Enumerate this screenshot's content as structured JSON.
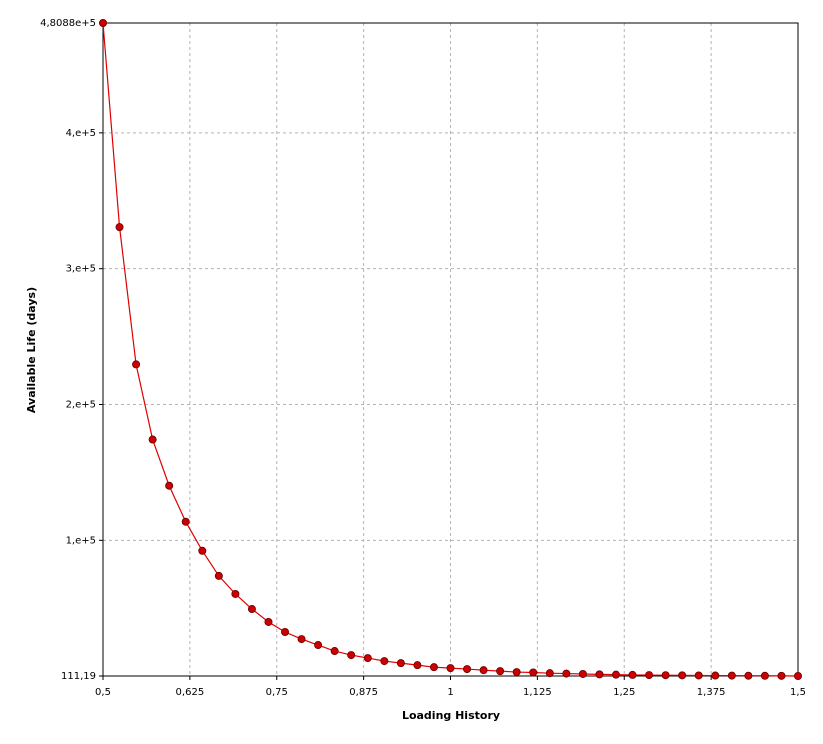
{
  "chart_data": {
    "type": "line",
    "x_label": "Loading History",
    "y_label": "Available Life (days)",
    "x": [
      0.5,
      0.5238,
      0.5476,
      0.5714,
      0.5952,
      0.619,
      0.6429,
      0.6667,
      0.6905,
      0.7143,
      0.7381,
      0.7619,
      0.7857,
      0.8095,
      0.8333,
      0.8571,
      0.881,
      0.9048,
      0.9286,
      0.9524,
      0.9762,
      1,
      1.0238,
      1.0476,
      1.0714,
      1.0952,
      1.119,
      1.1429,
      1.1667,
      1.1905,
      1.2143,
      1.2381,
      1.2619,
      1.2857,
      1.3095,
      1.3333,
      1.3571,
      1.381,
      1.4048,
      1.4286,
      1.4524,
      1.4762,
      1.5
    ],
    "values": [
      480880,
      330600,
      229500,
      174200,
      140200,
      113700,
      92300,
      73800,
      60500,
      49400,
      39900,
      32500,
      27300,
      22900,
      18500,
      15500,
      13300,
      11100,
      9600,
      8100,
      6600,
      5900,
      5200,
      4400,
      3700,
      3000,
      2700,
      2200,
      1900,
      1600,
      1300,
      1100,
      900,
      800,
      700,
      600,
      500,
      450,
      400,
      330,
      280,
      230,
      111.19
    ],
    "color": "#e00000",
    "marker_color": "#cc0000",
    "xlim": [
      0.5,
      1.5
    ],
    "ylim": [
      111.19,
      480880
    ],
    "xticks": [
      {
        "value": 0.5,
        "label": "0,5"
      },
      {
        "value": 0.625,
        "label": "0,625"
      },
      {
        "value": 0.75,
        "label": "0,75"
      },
      {
        "value": 0.875,
        "label": "0,875"
      },
      1,
      {
        "value": 1.125,
        "label": "1,125"
      },
      {
        "value": 1.25,
        "label": "1,25"
      },
      {
        "value": 1.375,
        "label": "1,375"
      },
      {
        "value": 1.5,
        "label": "1,5"
      }
    ],
    "yticks": [
      {
        "value": 111.19,
        "label": "111,19"
      },
      {
        "value": 100000,
        "label": "1,e+5"
      },
      {
        "value": 200000,
        "label": "2,e+5"
      },
      {
        "value": 300000,
        "label": "3,e+5"
      },
      {
        "value": 400000,
        "label": "4,e+5"
      },
      {
        "value": 480880,
        "label": "4,8088e+5"
      }
    ],
    "grid": true
  }
}
